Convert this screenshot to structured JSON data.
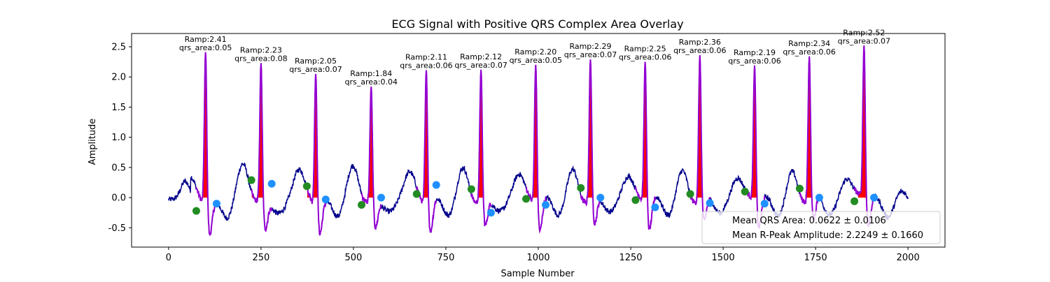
{
  "chart_data": {
    "type": "line",
    "title": "ECG Signal with Positive QRS Complex Area Overlay",
    "xlabel": "Sample Number",
    "ylabel": "Amplitude",
    "xlim": [
      -100,
      2100
    ],
    "ylim": [
      -0.82,
      2.72
    ],
    "xticks": [
      0,
      250,
      500,
      750,
      1000,
      1250,
      1500,
      1750,
      2000
    ],
    "yticks": [
      -0.5,
      0.0,
      0.5,
      1.0,
      1.5,
      2.0,
      2.5
    ],
    "grid": false,
    "legend_position": "lower-right",
    "legend": [
      "Mean QRS Area: 0.0622 ± 0.0106",
      "Mean R-Peak Amplitude: 2.2249 ± 0.1660"
    ],
    "colors": {
      "ecg_line": "#00008b",
      "qrs_segment": "#9400d3",
      "qrs_area": "#ff0000",
      "onset_marker": "#228b22",
      "offset_marker": "#1e90ff"
    },
    "beats": [
      {
        "r": 100,
        "ramp": 2.41,
        "area": 0.05,
        "onset": [
          75,
          -0.22
        ],
        "offset": [
          130,
          -0.1
        ],
        "qrs_start": 90,
        "qrs_end": 115,
        "label": "Ramp:2.41",
        "area_label": "qrs_area:0.05"
      },
      {
        "r": 250,
        "ramp": 2.23,
        "area": 0.08,
        "onset": [
          224,
          0.29
        ],
        "offset": [
          279,
          0.23
        ],
        "qrs_start": 225,
        "qrs_end": 265,
        "label": "Ramp:2.23",
        "area_label": "qrs_area:0.08"
      },
      {
        "r": 398,
        "ramp": 2.05,
        "area": 0.07,
        "onset": [
          374,
          0.19
        ],
        "offset": [
          425,
          -0.03
        ],
        "qrs_start": 375,
        "qrs_end": 410,
        "label": "Ramp:2.05",
        "area_label": "qrs_area:0.07"
      },
      {
        "r": 548,
        "ramp": 1.84,
        "area": 0.04,
        "onset": [
          522,
          -0.12
        ],
        "offset": [
          575,
          0.0
        ],
        "qrs_start": 540,
        "qrs_end": 560,
        "label": "Ramp:1.84",
        "area_label": "qrs_area:0.04"
      },
      {
        "r": 697,
        "ramp": 2.11,
        "area": 0.06,
        "onset": [
          671,
          0.06
        ],
        "offset": [
          724,
          0.21
        ],
        "qrs_start": 680,
        "qrs_end": 707,
        "label": "Ramp:2.11",
        "area_label": "qrs_area:0.06"
      },
      {
        "r": 845,
        "ramp": 2.12,
        "area": 0.07,
        "onset": [
          819,
          0.14
        ],
        "offset": [
          872,
          -0.25
        ],
        "qrs_start": 820,
        "qrs_end": 855,
        "label": "Ramp:2.12",
        "area_label": "qrs_area:0.07"
      },
      {
        "r": 993,
        "ramp": 2.2,
        "area": 0.05,
        "onset": [
          967,
          -0.02
        ],
        "offset": [
          1020,
          -0.12
        ],
        "qrs_start": 980,
        "qrs_end": 1003,
        "label": "Ramp:2.20",
        "area_label": "qrs_area:0.05"
      },
      {
        "r": 1141,
        "ramp": 2.29,
        "area": 0.07,
        "onset": [
          1115,
          0.16
        ],
        "offset": [
          1168,
          0.0
        ],
        "qrs_start": 1117,
        "qrs_end": 1153,
        "label": "Ramp:2.29",
        "area_label": "qrs_area:0.07"
      },
      {
        "r": 1289,
        "ramp": 2.25,
        "area": 0.06,
        "onset": [
          1263,
          -0.04
        ],
        "offset": [
          1316,
          -0.16
        ],
        "qrs_start": 1275,
        "qrs_end": 1299,
        "label": "Ramp:2.25",
        "area_label": "qrs_area:0.06"
      },
      {
        "r": 1437,
        "ramp": 2.36,
        "area": 0.06,
        "onset": [
          1411,
          0.06
        ],
        "offset": [
          1464,
          -0.09
        ],
        "qrs_start": 1425,
        "qrs_end": 1448,
        "label": "Ramp:2.36",
        "area_label": "qrs_area:0.06"
      },
      {
        "r": 1585,
        "ramp": 2.19,
        "area": 0.06,
        "onset": [
          1559,
          0.1
        ],
        "offset": [
          1612,
          -0.1
        ],
        "qrs_start": 1570,
        "qrs_end": 1596,
        "label": "Ramp:2.19",
        "area_label": "qrs_area:0.06"
      },
      {
        "r": 1733,
        "ramp": 2.34,
        "area": 0.06,
        "onset": [
          1707,
          0.15
        ],
        "offset": [
          1760,
          0.0
        ],
        "qrs_start": 1718,
        "qrs_end": 1744,
        "label": "Ramp:2.34",
        "area_label": "qrs_area:0.06"
      },
      {
        "r": 1881,
        "ramp": 2.52,
        "area": 0.07,
        "onset": [
          1855,
          -0.06
        ],
        "offset": [
          1908,
          0.0
        ],
        "qrs_start": 1865,
        "qrs_end": 1892,
        "label": "Ramp:2.52",
        "area_label": "qrs_area:0.07"
      }
    ]
  }
}
